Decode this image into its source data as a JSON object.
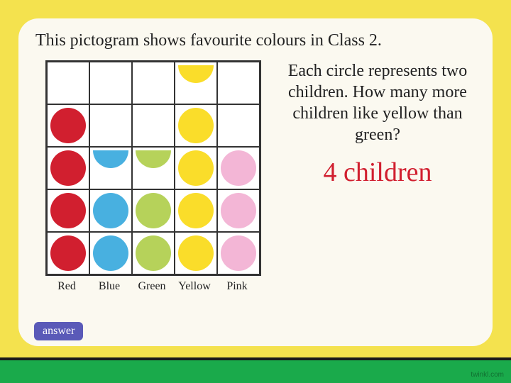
{
  "colors": {
    "outer_bg": "#f4e24e",
    "bottom_stripe": "#1aaa4b",
    "card_bg": "#fbf9f0",
    "btn_bg": "#5a5ab8",
    "answer_color": "#d11f2f"
  },
  "title": "This pictogram shows favourite colours in Class 2.",
  "question": "Each circle represents two children. How many more children like yellow than green?",
  "answer": "4 children",
  "answer_btn_label": "answer",
  "watermark": "twinkl.com",
  "pictogram": {
    "type": "pictogram",
    "rows": 5,
    "cols": 5,
    "cell_size": 60,
    "circle_diameter": 50,
    "grid_border_color": "#333333",
    "categories": [
      {
        "label": "Red",
        "color": "#d11f2f",
        "count": 4.0
      },
      {
        "label": "Blue",
        "color": "#48b0e0",
        "count": 2.5
      },
      {
        "label": "Green",
        "color": "#b6d25a",
        "count": 2.5
      },
      {
        "label": "Yellow",
        "color": "#fadd2a",
        "count": 4.5
      },
      {
        "label": "Pink",
        "color": "#f3b6d6",
        "count": 3.0
      }
    ]
  }
}
